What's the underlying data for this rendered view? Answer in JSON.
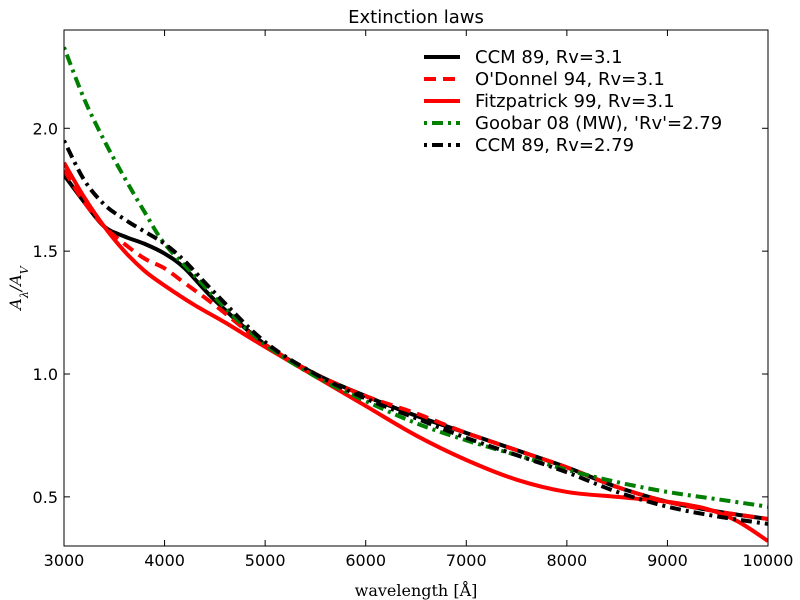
{
  "chart_data": {
    "type": "line",
    "title": "Extinction laws",
    "xlabel": "wavelength [Å]",
    "ylabel": "A_λ/A_V",
    "xlim": [
      3000,
      10000
    ],
    "ylim": [
      0.3,
      2.4
    ],
    "xticks": [
      3000,
      4000,
      5000,
      6000,
      7000,
      8000,
      9000,
      10000
    ],
    "yticks": [
      0.5,
      1.0,
      1.5,
      2.0
    ],
    "xtick_labels": [
      "3000",
      "4000",
      "5000",
      "6000",
      "7000",
      "8000",
      "9000",
      "10000"
    ],
    "ytick_labels": [
      "0.5",
      "1.0",
      "1.5",
      "2.0"
    ],
    "grid": false,
    "legend_position": "top-right",
    "series": [
      {
        "name": "CCM 89, Rv=3.1",
        "color": "#000000",
        "style": "solid",
        "x": [
          3000,
          3200,
          3400,
          3600,
          3800,
          4000,
          4200,
          4500,
          5000,
          5500,
          6000,
          6500,
          7000,
          7500,
          8000,
          8500,
          9000,
          9500,
          10000
        ],
        "y": [
          1.81,
          1.7,
          1.6,
          1.56,
          1.53,
          1.49,
          1.43,
          1.3,
          1.12,
          1.0,
          0.91,
          0.83,
          0.76,
          0.69,
          0.62,
          0.54,
          0.48,
          0.44,
          0.41
        ]
      },
      {
        "name": "O'Donnel 94, Rv=3.1",
        "color": "#ff0000",
        "style": "dashed",
        "x": [
          3000,
          3200,
          3400,
          3600,
          3800,
          4000,
          4200,
          4500,
          5000,
          5500,
          6000,
          6500,
          7000,
          7500,
          8000,
          8500,
          9000,
          9500,
          10000
        ],
        "y": [
          1.83,
          1.7,
          1.6,
          1.53,
          1.47,
          1.43,
          1.37,
          1.28,
          1.12,
          1.0,
          0.91,
          0.84,
          0.76,
          0.69,
          0.62,
          0.54,
          0.48,
          0.44,
          0.41
        ]
      },
      {
        "name": "Fitzpatrick 99, Rv=3.1",
        "color": "#ff0000",
        "style": "solid",
        "x": [
          3000,
          3200,
          3400,
          3600,
          3800,
          4000,
          4300,
          4600,
          5000,
          5500,
          6000,
          6500,
          7000,
          7500,
          8000,
          8500,
          9000,
          9400,
          9700,
          10000
        ],
        "y": [
          1.86,
          1.72,
          1.6,
          1.5,
          1.42,
          1.36,
          1.28,
          1.21,
          1.11,
          0.99,
          0.87,
          0.75,
          0.65,
          0.57,
          0.52,
          0.5,
          0.48,
          0.45,
          0.4,
          0.32
        ]
      },
      {
        "name": "Goobar 08 (MW), 'Rv'=2.79",
        "color": "#007f00",
        "style": "dashdot",
        "x": [
          3000,
          3200,
          3400,
          3600,
          3800,
          4000,
          4300,
          4600,
          5000,
          5500,
          6000,
          6500,
          7000,
          7500,
          8000,
          8500,
          9000,
          9500,
          10000
        ],
        "y": [
          2.33,
          2.12,
          1.95,
          1.8,
          1.66,
          1.53,
          1.4,
          1.27,
          1.12,
          0.99,
          0.89,
          0.8,
          0.73,
          0.67,
          0.61,
          0.56,
          0.52,
          0.49,
          0.46
        ]
      },
      {
        "name": "CCM 89, Rv=2.79",
        "color": "#000000",
        "style": "dashdot",
        "x": [
          3000,
          3200,
          3400,
          3600,
          3800,
          4000,
          4200,
          4500,
          5000,
          5500,
          6000,
          6500,
          7000,
          7500,
          8000,
          8500,
          9000,
          9500,
          10000
        ],
        "y": [
          1.95,
          1.79,
          1.69,
          1.63,
          1.58,
          1.53,
          1.46,
          1.33,
          1.13,
          1.0,
          0.9,
          0.82,
          0.74,
          0.67,
          0.6,
          0.52,
          0.46,
          0.42,
          0.39
        ]
      }
    ]
  }
}
